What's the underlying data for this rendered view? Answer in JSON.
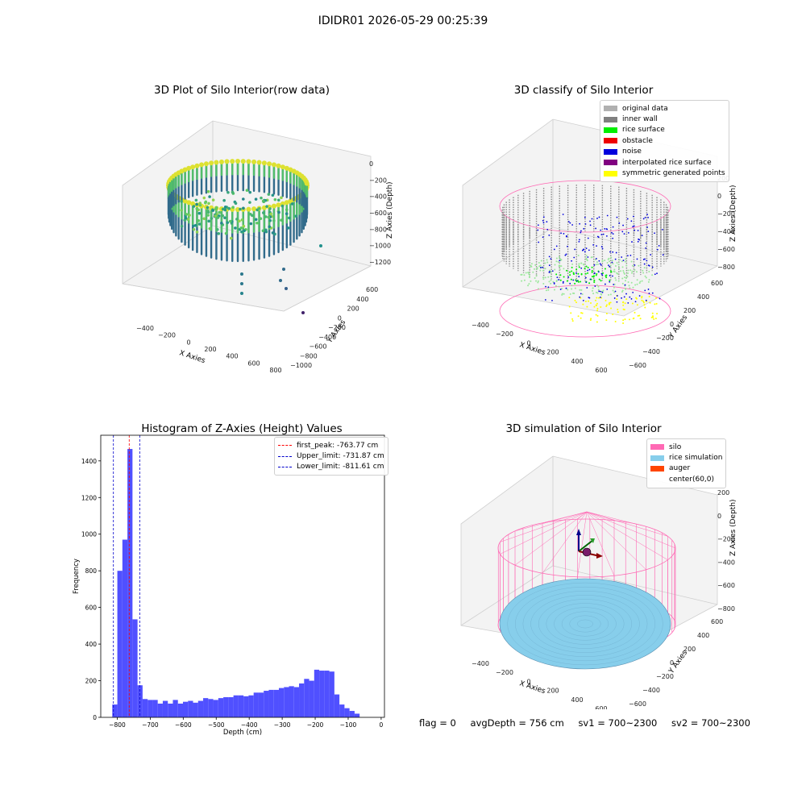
{
  "suptitle": "IDIDR01 2026-05-29 00:25:39",
  "chart_data": [
    {
      "type": "scatter",
      "title": "3D Plot of Silo Interior(row data)",
      "xlabel": "X Axies",
      "ylabel": "Y Axies",
      "zlabel": "Z Axies (Depth)",
      "x_ticks": [
        "−400",
        "−200",
        "0",
        "200",
        "400",
        "600",
        "800"
      ],
      "y_ticks": [
        "−1000",
        "−800",
        "−600",
        "−400",
        "−200",
        "0",
        "200",
        "400",
        "600"
      ],
      "z_ticks": [
        "0",
        "−200",
        "−400",
        "−600",
        "−800",
        "−1000",
        "−1200"
      ],
      "colormap": "viridis"
    },
    {
      "type": "scatter",
      "title": "3D classify of Silo Interior",
      "xlabel": "X Axies",
      "ylabel": "Y Axies",
      "zlabel": "Z Axies (Depth)",
      "x_ticks": [
        "−400",
        "−200",
        "0",
        "200",
        "400",
        "600"
      ],
      "y_ticks": [
        "−600",
        "−400",
        "−200",
        "0",
        "200",
        "400",
        "600"
      ],
      "z_ticks": [
        "200",
        "0",
        "−200",
        "−400",
        "−600",
        "−800"
      ],
      "legend": [
        {
          "label": "original data",
          "color": "#b0b0b0"
        },
        {
          "label": "inner wall",
          "color": "#808080"
        },
        {
          "label": "rice surface",
          "color": "#00ee00"
        },
        {
          "label": "obstacle",
          "color": "#ee0000"
        },
        {
          "label": "noise",
          "color": "#0000dd"
        },
        {
          "label": "interpolated rice surface",
          "color": "#800080"
        },
        {
          "label": "symmetric generated points",
          "color": "#ffff00"
        }
      ]
    },
    {
      "type": "bar",
      "title": "Histogram of Z-Axies (Height) Values",
      "xlabel": "Depth (cm)",
      "ylabel": "Frequency",
      "bin_width": 15.3,
      "bins_start": -815,
      "values": [
        70,
        800,
        970,
        1465,
        535,
        175,
        100,
        95,
        95,
        75,
        90,
        75,
        95,
        75,
        85,
        90,
        80,
        90,
        105,
        100,
        95,
        105,
        110,
        110,
        120,
        120,
        115,
        120,
        135,
        135,
        145,
        150,
        150,
        160,
        165,
        170,
        165,
        185,
        210,
        200,
        260,
        255,
        255,
        250,
        125,
        70,
        50,
        35,
        20
      ],
      "xlim": [
        -850,
        10
      ],
      "ylim": [
        0,
        1540
      ],
      "x_ticks": [
        -800,
        -700,
        -600,
        -500,
        -400,
        -300,
        -200,
        -100,
        0
      ],
      "y_ticks": [
        0,
        200,
        400,
        600,
        800,
        1000,
        1200,
        1400
      ],
      "bar_color": "#5050ff",
      "lines": [
        {
          "label": "first_peak: -763.77 cm",
          "x": -763.77,
          "color": "#ff0000"
        },
        {
          "label": "Upper_limit: -731.87 cm",
          "x": -731.87,
          "color": "#0000cc"
        },
        {
          "label": "Lower_limit: -811.61 cm",
          "x": -811.61,
          "color": "#0000cc"
        }
      ]
    },
    {
      "type": "scatter",
      "title": "3D simulation of Silo Interior",
      "xlabel": "X Axies",
      "ylabel": "Y Axies",
      "zlabel": "Z Axies (Depth)",
      "x_ticks": [
        "−400",
        "−200",
        "0",
        "200",
        "400",
        "600"
      ],
      "y_ticks": [
        "−600",
        "−400",
        "−200",
        "0",
        "200",
        "400",
        "600"
      ],
      "z_ticks": [
        "200",
        "0",
        "−200",
        "−400",
        "−600",
        "−800"
      ],
      "legend": [
        {
          "label": "silo",
          "color": "#ff69b4"
        },
        {
          "label": "rice simulation",
          "color": "#87ceeb"
        },
        {
          "label": "auger",
          "color": "#ff4500"
        },
        {
          "label": "center(60,0)",
          "color": ""
        }
      ]
    }
  ],
  "footer": {
    "flag": "flag = 0",
    "avg_depth": "avgDepth = 756 cm",
    "sv1": "sv1 = 700~2300",
    "sv2": "sv2 = 700~2300"
  }
}
